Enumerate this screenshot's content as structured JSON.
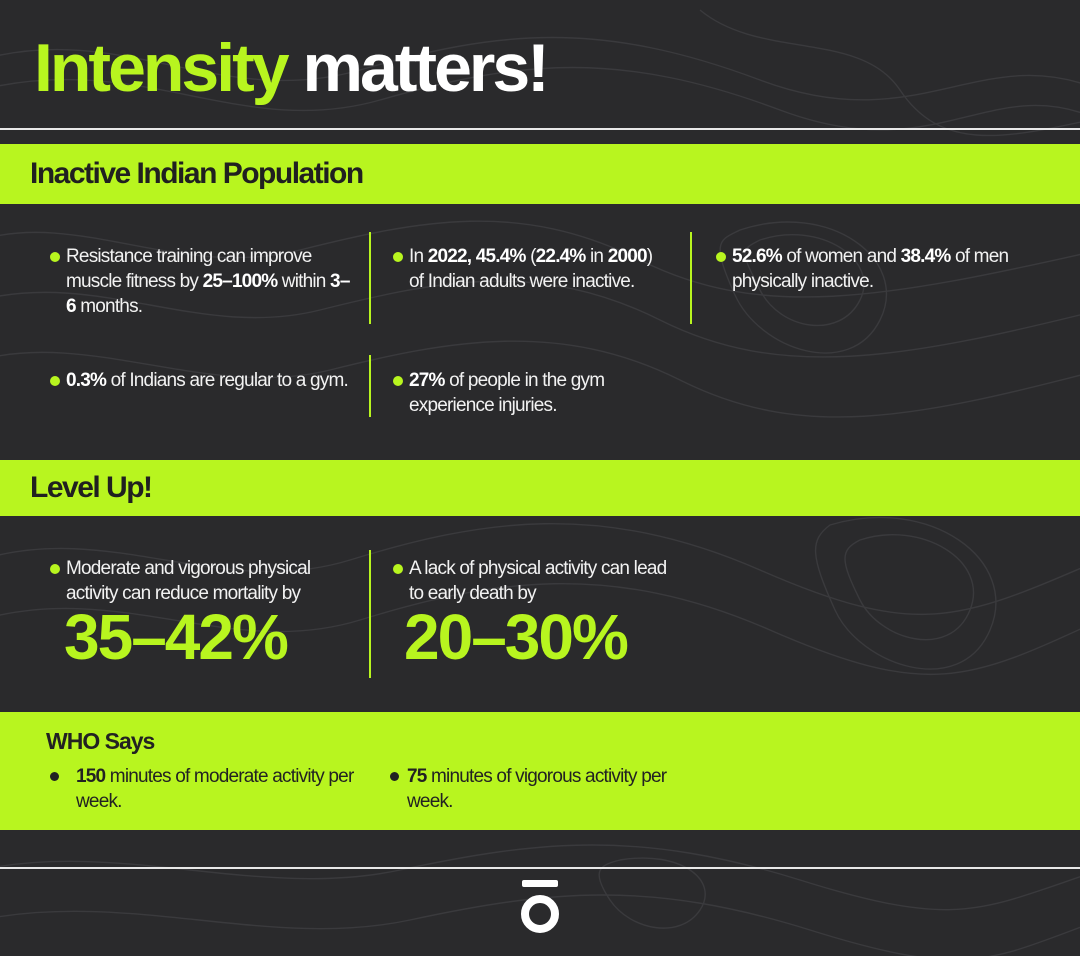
{
  "title": {
    "accent": "Intensity",
    "rest": " matters!"
  },
  "section1": {
    "heading": "Inactive Indian Population",
    "items": [
      {
        "pre": "Resistance training can improve muscle fitness by ",
        "b1": "25–100%",
        "mid": " within ",
        "b2": "3–6",
        "post": " months."
      },
      {
        "pre": "In ",
        "b1": "2022, 45.4%",
        "mid": " (",
        "b2": "22.4%",
        "post": " in ",
        "b3": "2000",
        "post2": ") of Indian adults were inactive."
      },
      {
        "b1": "52.6%",
        "mid": " of women and ",
        "b2": "38.4%",
        "post": " of men physically inactive."
      },
      {
        "b1": "0.3%",
        "post": " of Indians are regular to a gym."
      },
      {
        "b1": "27%",
        "post": " of people in the gym experience injuries."
      }
    ]
  },
  "section2": {
    "heading": "Level Up!",
    "items": [
      {
        "text": "Moderate and vigorous physical activity can reduce mortality by",
        "big": "35–42%"
      },
      {
        "text": "A lack of physical activity can lead to early death by",
        "big": "20–30%"
      }
    ]
  },
  "who": {
    "title": "WHO Says",
    "items": [
      {
        "b": "150",
        "text": " minutes of moderate activity per week."
      },
      {
        "b": "75",
        "text": " minutes of vigorous activity per week."
      }
    ]
  },
  "colors": {
    "accent": "#b8f51f",
    "background": "#2a2a2c",
    "text": "#ffffff"
  },
  "icons": {
    "logo": "brand-logo-icon",
    "bullet": "bullet-dot-icon"
  }
}
